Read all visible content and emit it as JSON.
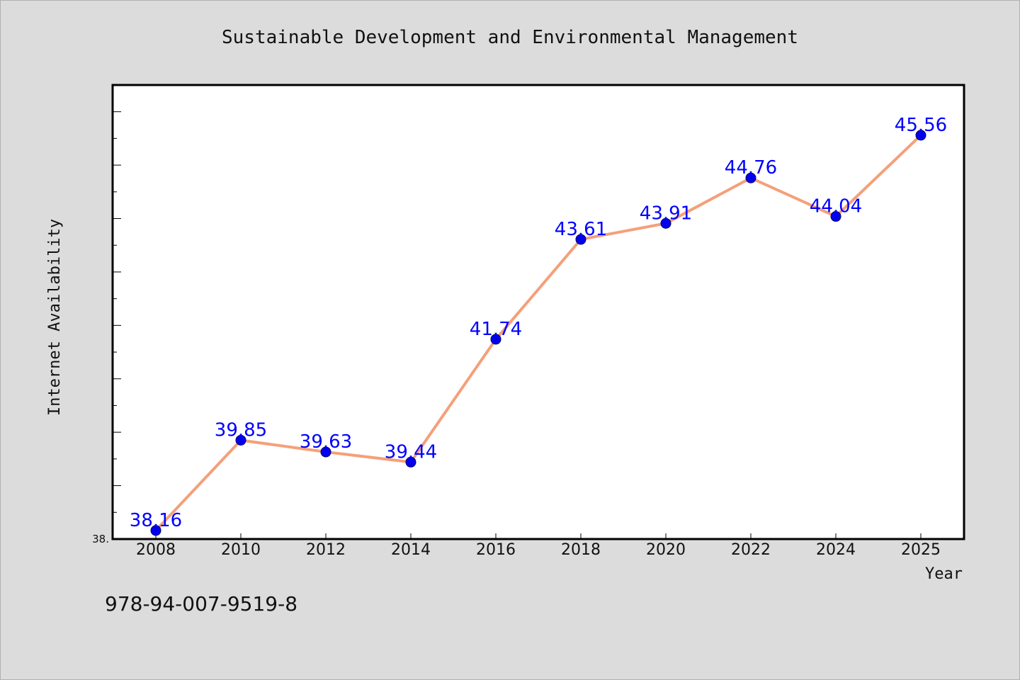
{
  "chart_data": {
    "type": "line",
    "title": "Sustainable Development and Environmental Management",
    "xlabel": "Year",
    "ylabel": "Internet Availability",
    "categories": [
      "2008",
      "2010",
      "2012",
      "2014",
      "2016",
      "2018",
      "2020",
      "2022",
      "2024",
      "2025"
    ],
    "series": [
      {
        "values": [
          38.16,
          39.85,
          39.63,
          39.44,
          41.74,
          43.61,
          43.91,
          44.76,
          44.04,
          45.56
        ],
        "labels": [
          "38.16",
          "39.85",
          "39.63",
          "39.44",
          "41.74",
          "43.61",
          "43.91",
          "44.76",
          "44.04",
          "45.56"
        ]
      }
    ],
    "ylim": [
      38.0,
      46.5
    ],
    "y_min_label": "38.",
    "grid": false,
    "legend": "none"
  },
  "footer": {
    "isbn": "978-94-007-9519-8"
  },
  "colors": {
    "background": "#dcdcdc",
    "plot_background": "#ffffff",
    "line": "#f4a07a",
    "marker": "#0000ee",
    "data_label": "#0000ff",
    "axis": "#000000"
  }
}
